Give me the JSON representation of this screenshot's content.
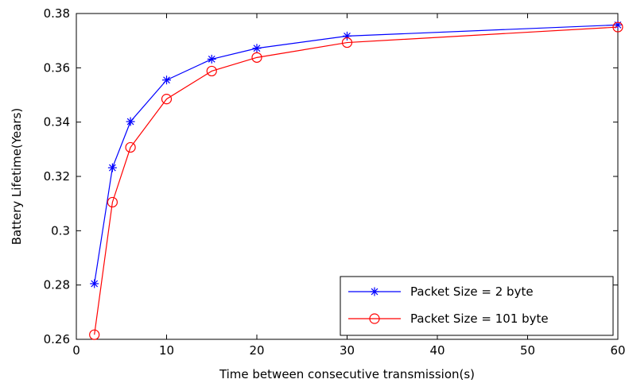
{
  "chart_data": {
    "type": "line",
    "title": "",
    "xlabel": "Time between consecutive transmission(s)",
    "ylabel": "Battery Lifetime(Years)",
    "xlim": [
      0,
      60
    ],
    "ylim": [
      0.26,
      0.38
    ],
    "xticks": [
      0,
      10,
      20,
      30,
      40,
      50,
      60
    ],
    "yticks": [
      0.26,
      0.28,
      0.3,
      0.32,
      0.34,
      0.36,
      0.38
    ],
    "xtick_labels": [
      "0",
      "10",
      "20",
      "30",
      "40",
      "50",
      "60"
    ],
    "ytick_labels": [
      "0.26",
      "0.28",
      "0.3",
      "0.32",
      "0.34",
      "0.36",
      "0.38"
    ],
    "grid": false,
    "legend_position": "bottom-right",
    "series": [
      {
        "name": "Packet Size = 2 byte",
        "color": "#0000ff",
        "marker": "asterisk",
        "x": [
          2,
          4,
          6,
          10,
          15,
          20,
          30,
          60
        ],
        "y": [
          0.2805,
          0.3232,
          0.3402,
          0.3555,
          0.3632,
          0.3672,
          0.3717,
          0.3758
        ]
      },
      {
        "name": "Packet Size = 101 byte",
        "color": "#ff0000",
        "marker": "circle",
        "x": [
          2,
          4,
          6,
          10,
          15,
          20,
          30,
          60
        ],
        "y": [
          0.2617,
          0.3105,
          0.3307,
          0.3485,
          0.3588,
          0.3638,
          0.3693,
          0.375
        ]
      }
    ]
  }
}
